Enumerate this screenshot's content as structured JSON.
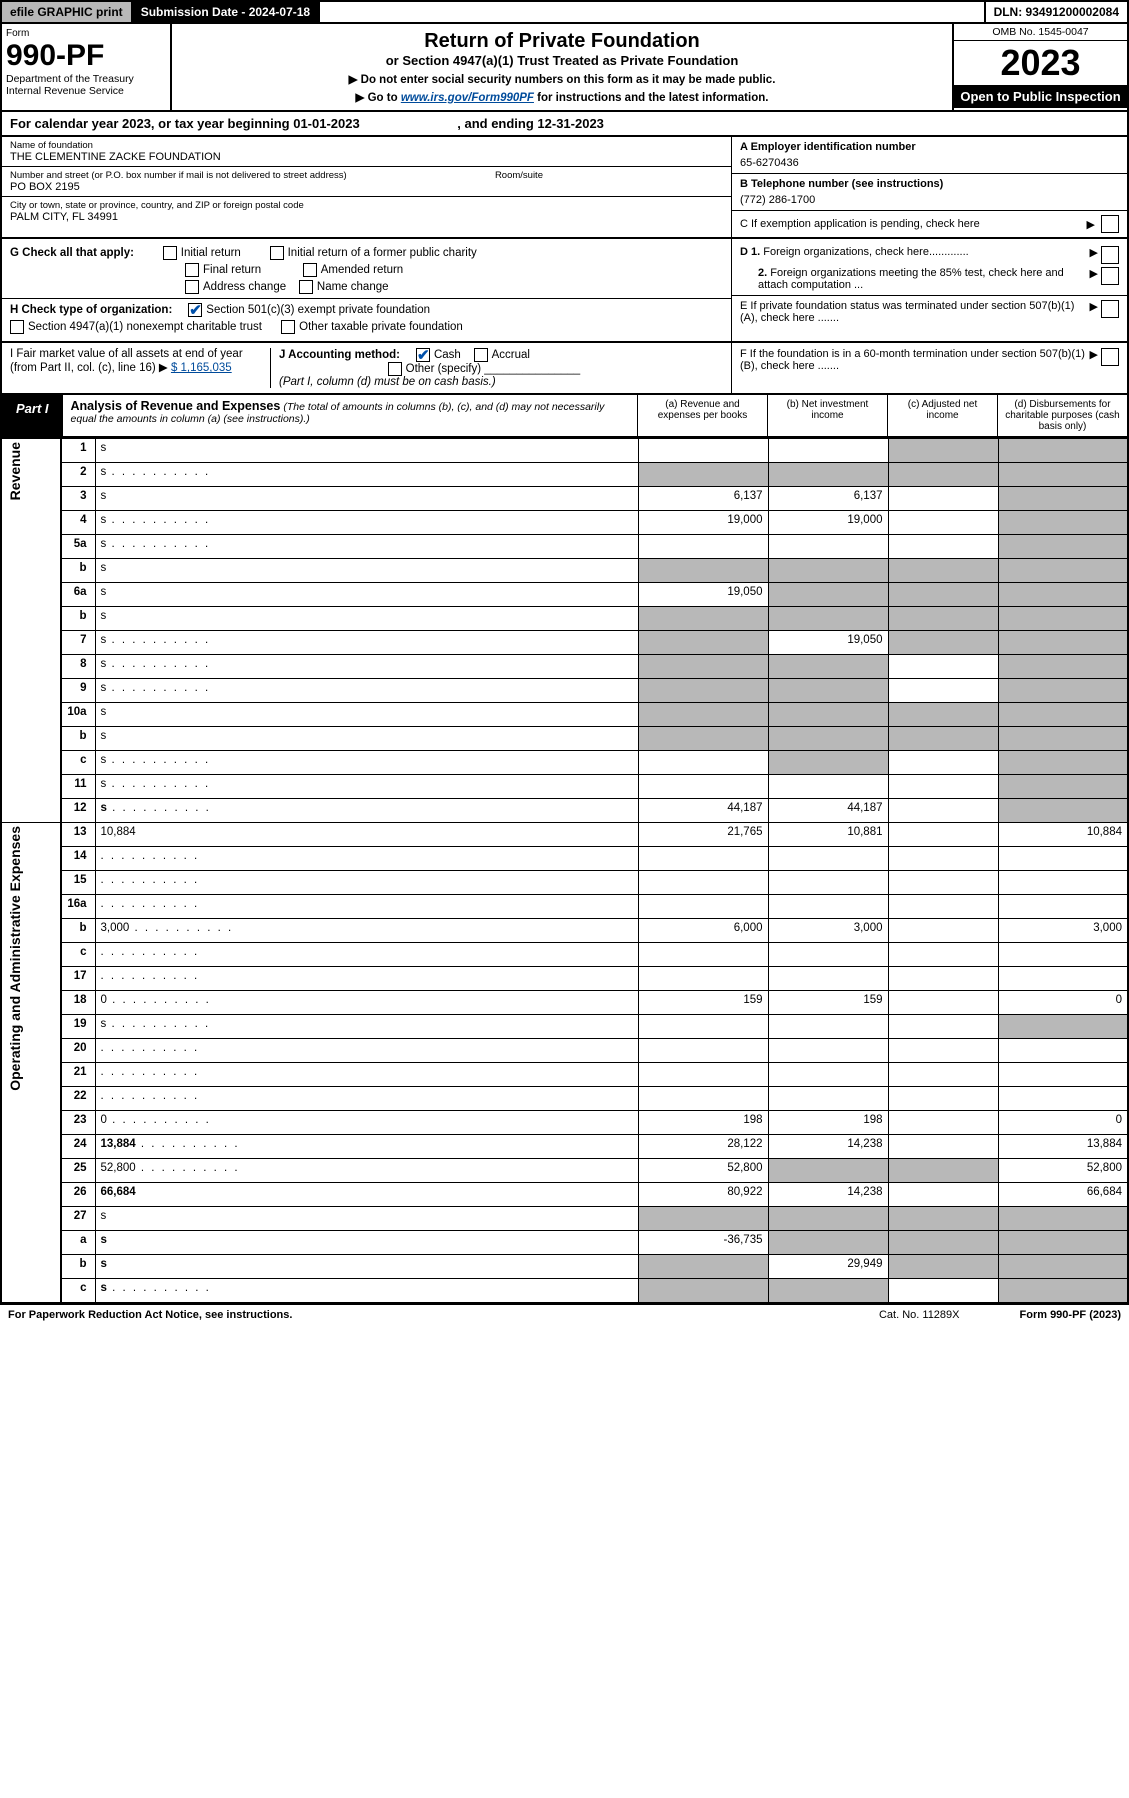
{
  "top": {
    "efile": "efile GRAPHIC print",
    "sub_label": "Submission Date - 2024-07-18",
    "dln": "DLN: 93491200002084"
  },
  "header": {
    "form": "Form",
    "num": "990-PF",
    "dept": "Department of the Treasury\nInternal Revenue Service",
    "title": "Return of Private Foundation",
    "sub": "or Section 4947(a)(1) Trust Treated as Private Foundation",
    "note1": "▶ Do not enter social security numbers on this form as it may be made public.",
    "note2_pre": "▶ Go to ",
    "note2_link": "www.irs.gov/Form990PF",
    "note2_post": " for instructions and the latest information.",
    "omb": "OMB No. 1545-0047",
    "year": "2023",
    "open": "Open to Public Inspection"
  },
  "cal": "For calendar year 2023, or tax year beginning 01-01-2023                           , and ending 12-31-2023",
  "info": {
    "name_lbl": "Name of foundation",
    "name": "THE CLEMENTINE ZACKE FOUNDATION",
    "addr_lbl": "Number and street (or P.O. box number if mail is not delivered to street address)",
    "addr": "PO BOX 2195",
    "room_lbl": "Room/suite",
    "city_lbl": "City or town, state or province, country, and ZIP or foreign postal code",
    "city": "PALM CITY, FL  34991",
    "a_lbl": "A Employer identification number",
    "a_val": "65-6270436",
    "b_lbl": "B Telephone number (see instructions)",
    "b_val": "(772) 286-1700",
    "c_lbl": "C If exemption application is pending, check here"
  },
  "g": {
    "lbl": "G Check all that apply:",
    "o1": "Initial return",
    "o2": "Initial return of a former public charity",
    "o3": "Final return",
    "o4": "Amended return",
    "o5": "Address change",
    "o6": "Name change"
  },
  "h": {
    "lbl": "H Check type of organization:",
    "o1": "Section 501(c)(3) exempt private foundation",
    "o2": "Section 4947(a)(1) nonexempt charitable trust",
    "o3": "Other taxable private foundation"
  },
  "d": {
    "d1": "D 1. Foreign organizations, check here.............",
    "d2": "2. Foreign organizations meeting the 85% test, check here and attach computation ...",
    "e": "E  If private foundation status was terminated under section 507(b)(1)(A), check here .......",
    "f": "F  If the foundation is in a 60-month termination under section 507(b)(1)(B), check here ......."
  },
  "i": {
    "lbl": "I Fair market value of all assets at end of year (from Part II, col. (c), line 16)",
    "val": "$  1,165,035"
  },
  "j": {
    "lbl": "J Accounting method:",
    "o1": "Cash",
    "o2": "Accrual",
    "o3": "Other (specify)",
    "note": "(Part I, column (d) must be on cash basis.)"
  },
  "part1": {
    "tag": "Part I",
    "title": "Analysis of Revenue and Expenses",
    "sub": "(The total of amounts in columns (b), (c), and (d) may not necessarily equal the amounts in column (a) (see instructions).)",
    "col_a": "(a)   Revenue and expenses per books",
    "col_b": "(b)   Net investment income",
    "col_c": "(c)   Adjusted net income",
    "col_d": "(d)   Disbursements for charitable purposes (cash basis only)"
  },
  "sections": {
    "rev": "Revenue",
    "exp": "Operating and Administrative Expenses"
  },
  "rows": [
    {
      "n": "1",
      "d": "s",
      "a": "",
      "b": "",
      "c": "s"
    },
    {
      "n": "2",
      "d": "s",
      "dots": true,
      "a": "s",
      "b": "s",
      "c": "s"
    },
    {
      "n": "3",
      "d": "s",
      "a": "6,137",
      "b": "6,137",
      "c": ""
    },
    {
      "n": "4",
      "d": "s",
      "dots": true,
      "a": "19,000",
      "b": "19,000",
      "c": ""
    },
    {
      "n": "5a",
      "d": "s",
      "dots": true,
      "a": "",
      "b": "",
      "c": ""
    },
    {
      "n": "b",
      "d": "s",
      "a": "s",
      "b": "s",
      "c": "s"
    },
    {
      "n": "6a",
      "d": "s",
      "a": "19,050",
      "b": "s",
      "c": "s"
    },
    {
      "n": "b",
      "d": "s",
      "a": "s",
      "b": "s",
      "c": "s"
    },
    {
      "n": "7",
      "d": "s",
      "dots": true,
      "a": "s",
      "b": "19,050",
      "c": "s"
    },
    {
      "n": "8",
      "d": "s",
      "dots": true,
      "a": "s",
      "b": "s",
      "c": ""
    },
    {
      "n": "9",
      "d": "s",
      "dots": true,
      "a": "s",
      "b": "s",
      "c": ""
    },
    {
      "n": "10a",
      "d": "s",
      "a": "s",
      "b": "s",
      "c": "s"
    },
    {
      "n": "b",
      "d": "s",
      "a": "s",
      "b": "s",
      "c": "s"
    },
    {
      "n": "c",
      "d": "s",
      "dots": true,
      "a": "",
      "b": "s",
      "c": ""
    },
    {
      "n": "11",
      "d": "s",
      "dots": true,
      "a": "",
      "b": "",
      "c": ""
    },
    {
      "n": "12",
      "d": "s",
      "dots": true,
      "bold": true,
      "a": "44,187",
      "b": "44,187",
      "c": ""
    },
    {
      "n": "13",
      "d": "10,884",
      "a": "21,765",
      "b": "10,881",
      "c": ""
    },
    {
      "n": "14",
      "d": "",
      "dots": true,
      "a": "",
      "b": "",
      "c": ""
    },
    {
      "n": "15",
      "d": "",
      "dots": true,
      "a": "",
      "b": "",
      "c": ""
    },
    {
      "n": "16a",
      "d": "",
      "dots": true,
      "a": "",
      "b": "",
      "c": ""
    },
    {
      "n": "b",
      "d": "3,000",
      "dots": true,
      "a": "6,000",
      "b": "3,000",
      "c": ""
    },
    {
      "n": "c",
      "d": "",
      "dots": true,
      "a": "",
      "b": "",
      "c": ""
    },
    {
      "n": "17",
      "d": "",
      "dots": true,
      "a": "",
      "b": "",
      "c": ""
    },
    {
      "n": "18",
      "d": "0",
      "dots": true,
      "a": "159",
      "b": "159",
      "c": ""
    },
    {
      "n": "19",
      "d": "s",
      "dots": true,
      "a": "",
      "b": "",
      "c": ""
    },
    {
      "n": "20",
      "d": "",
      "dots": true,
      "a": "",
      "b": "",
      "c": ""
    },
    {
      "n": "21",
      "d": "",
      "dots": true,
      "a": "",
      "b": "",
      "c": ""
    },
    {
      "n": "22",
      "d": "",
      "dots": true,
      "a": "",
      "b": "",
      "c": ""
    },
    {
      "n": "23",
      "d": "0",
      "dots": true,
      "a": "198",
      "b": "198",
      "c": ""
    },
    {
      "n": "24",
      "d": "13,884",
      "dots": true,
      "bold": true,
      "a": "28,122",
      "b": "14,238",
      "c": ""
    },
    {
      "n": "25",
      "d": "52,800",
      "dots": true,
      "a": "52,800",
      "b": "s",
      "c": "s"
    },
    {
      "n": "26",
      "d": "66,684",
      "bold": true,
      "a": "80,922",
      "b": "14,238",
      "c": ""
    },
    {
      "n": "27",
      "d": "s",
      "a": "s",
      "b": "s",
      "c": "s"
    },
    {
      "n": "a",
      "d": "s",
      "bold": true,
      "a": "-36,735",
      "b": "s",
      "c": "s"
    },
    {
      "n": "b",
      "d": "s",
      "bold": true,
      "a": "s",
      "b": "29,949",
      "c": "s"
    },
    {
      "n": "c",
      "d": "s",
      "dots": true,
      "bold": true,
      "a": "s",
      "b": "s",
      "c": ""
    }
  ],
  "footer": {
    "l": "For Paperwork Reduction Act Notice, see instructions.",
    "c": "Cat. No. 11289X",
    "r": "Form 990-PF (2023)"
  }
}
